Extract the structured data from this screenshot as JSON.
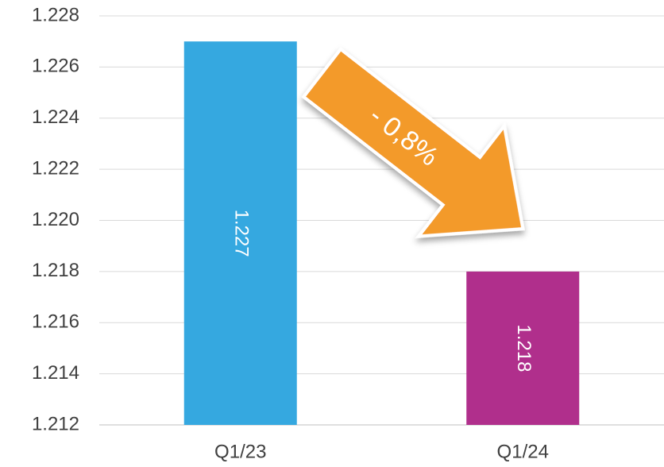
{
  "chart_data": {
    "type": "bar",
    "categories": [
      "Q1/23",
      "Q1/24"
    ],
    "values": [
      1.227,
      1.218
    ],
    "colors": [
      "#35a8e0",
      "#b02f8c"
    ],
    "ylim": [
      1.212,
      1.228
    ],
    "yticks": [
      1.212,
      1.214,
      1.216,
      1.218,
      1.22,
      1.222,
      1.224,
      1.226,
      1.228
    ],
    "ytick_labels": [
      "1.212",
      "1.214",
      "1.216",
      "1.218",
      "1.220",
      "1.222",
      "1.224",
      "1.226",
      "1.228"
    ],
    "annotation": "- 0,8%",
    "grid": true
  }
}
